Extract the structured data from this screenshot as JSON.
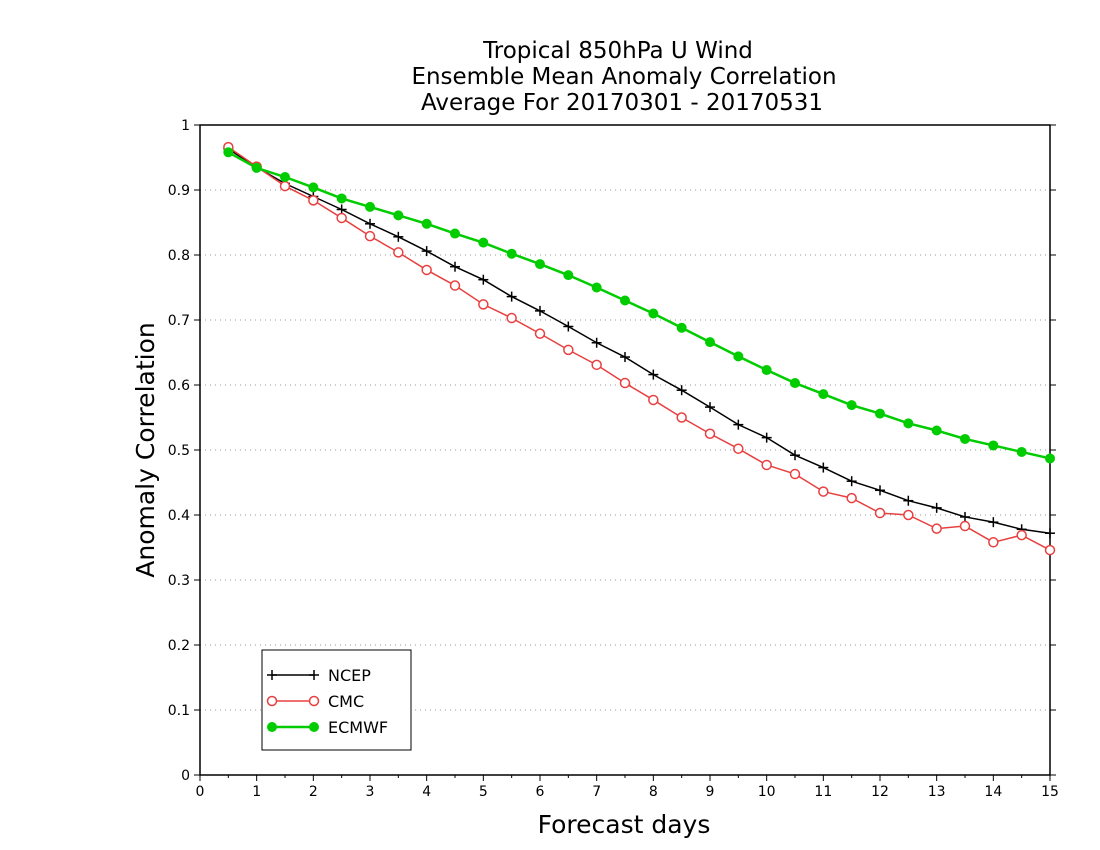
{
  "chart_data": {
    "type": "line",
    "title_lines": [
      "Tropical 850hPa U Wind",
      "Ensemble Mean Anomaly Correlation",
      "Average For 20170301 - 20170531"
    ],
    "xlabel": "Forecast days",
    "ylabel": "Anomaly Correlation",
    "xlim": [
      0,
      15
    ],
    "ylim": [
      0,
      1
    ],
    "x_ticks": [
      "0",
      "1",
      "2",
      "3",
      "4",
      "5",
      "6",
      "7",
      "8",
      "9",
      "10",
      "11",
      "12",
      "13",
      "14",
      "15"
    ],
    "y_ticks": [
      "0",
      "0.1",
      "0.2",
      "0.3",
      "0.4",
      "0.5",
      "0.6",
      "0.7",
      "0.8",
      "0.9",
      "1"
    ],
    "grid": "dotted horizontal",
    "legend_position": "bottom-left",
    "x": [
      0.5,
      1,
      1.5,
      2,
      2.5,
      3,
      3.5,
      4,
      4.5,
      5,
      5.5,
      6,
      6.5,
      7,
      7.5,
      8,
      8.5,
      9,
      9.5,
      10,
      10.5,
      11,
      11.5,
      12,
      12.5,
      13,
      13.5,
      14,
      14.5,
      15
    ],
    "series": [
      {
        "name": "NCEP",
        "color": "#000000",
        "marker": "plus",
        "values": [
          0.963,
          0.935,
          0.91,
          0.89,
          0.87,
          0.848,
          0.828,
          0.806,
          0.782,
          0.762,
          0.736,
          0.714,
          0.69,
          0.665,
          0.643,
          0.616,
          0.592,
          0.566,
          0.539,
          0.519,
          0.492,
          0.473,
          0.452,
          0.438,
          0.422,
          0.411,
          0.397,
          0.389,
          0.378,
          0.372
        ]
      },
      {
        "name": "CMC",
        "color": "#e84040",
        "marker": "open-circle",
        "values": [
          0.966,
          0.936,
          0.906,
          0.884,
          0.857,
          0.829,
          0.804,
          0.777,
          0.753,
          0.724,
          0.703,
          0.679,
          0.654,
          0.631,
          0.603,
          0.577,
          0.55,
          0.525,
          0.502,
          0.477,
          0.463,
          0.436,
          0.426,
          0.403,
          0.4,
          0.379,
          0.383,
          0.358,
          0.369,
          0.346
        ]
      },
      {
        "name": "ECMWF",
        "color": "#00cc00",
        "marker": "filled-circle",
        "values": [
          0.958,
          0.934,
          0.92,
          0.904,
          0.887,
          0.874,
          0.861,
          0.848,
          0.833,
          0.819,
          0.802,
          0.786,
          0.769,
          0.75,
          0.73,
          0.71,
          0.688,
          0.666,
          0.644,
          0.623,
          0.603,
          0.586,
          0.569,
          0.556,
          0.541,
          0.53,
          0.517,
          0.507,
          0.497,
          0.487
        ]
      }
    ]
  }
}
